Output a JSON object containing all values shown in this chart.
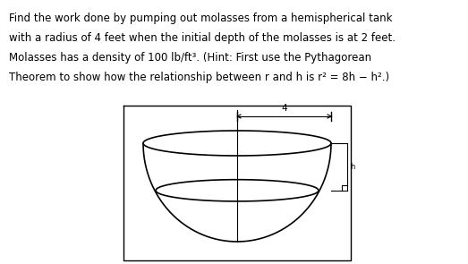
{
  "text_lines": [
    "Find the work done by pumping out molasses from a hemispherical tank",
    "with a radius of 4 feet when the initial depth of the molasses is at 2 feet.",
    "Molasses has a density of 100 lb/ft³. (Hint: First use the Pythagorean",
    "Theorem to show how the relationship between r and h is r² = 8h − h².)"
  ],
  "text_fontsize": 8.5,
  "text_font": "DejaVu Sans",
  "bg_color": "#ffffff",
  "line_color": "#000000",
  "label_4": "4",
  "label_4_fontsize": 7.5
}
